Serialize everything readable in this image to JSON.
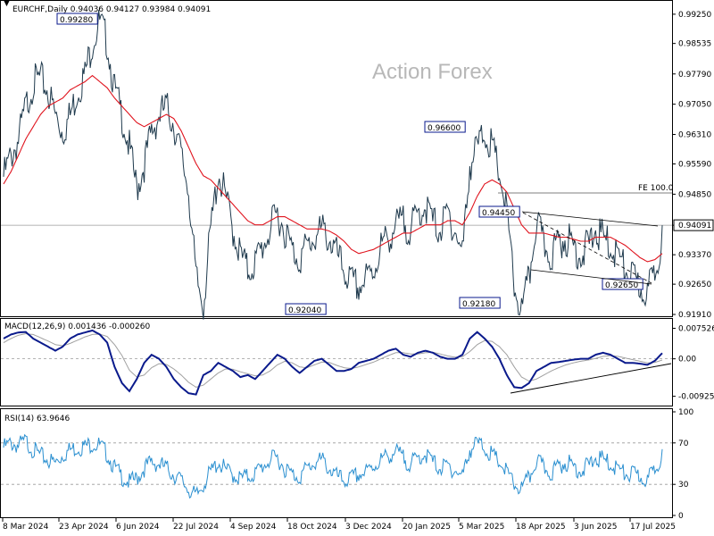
{
  "header": {
    "symbol_line": "EURCHF,Daily  0.94036 0.94127 0.93984 0.94091",
    "watermark": "Action Forex"
  },
  "colors": {
    "price": "#1f3a4d",
    "ma": "#e0141e",
    "macd": "#0a1a8c",
    "signal": "#a0a0a0",
    "rsi": "#2a8fd0",
    "label_border": "#0a1a8c",
    "trend": "#000000",
    "hline": "#9a9a9a"
  },
  "chart_data": [
    {
      "type": "line",
      "title": "EURCHF,Daily  0.94036 0.94127 0.93984 0.94091",
      "y_tick_labels": [
        "0.99250",
        "0.98535",
        "0.97790",
        "0.97050",
        "0.96310",
        "0.95590",
        "0.94850",
        "0.94091",
        "0.93370",
        "0.92650",
        "0.91910"
      ],
      "ylim": [
        0.9191,
        0.9951
      ],
      "current_price": "0.94091",
      "annotations": [
        "0.99280",
        "0.92040",
        "0.96600",
        "0.94450",
        "0.92180",
        "0.92650",
        "FE 100.0"
      ],
      "series": [
        {
          "values": [
            0.955,
            0.96,
            0.964,
            0.972,
            0.978,
            0.979,
            0.976,
            0.97,
            0.966,
            0.97,
            0.976,
            0.98,
            0.988,
            0.9928,
            0.988,
            0.976,
            0.97,
            0.962,
            0.952,
            0.958,
            0.966,
            0.97,
            0.972,
            0.968,
            0.96,
            0.952,
            0.93,
            0.924,
            0.942,
            0.956,
            0.95,
            0.942,
            0.936,
            0.932,
            0.934,
            0.938,
            0.942,
            0.946,
            0.942,
            0.937,
            0.935,
            0.938,
            0.94,
            0.942,
            0.94,
            0.936,
            0.932,
            0.929,
            0.928,
            0.93,
            0.932,
            0.938,
            0.94,
            0.943,
            0.944,
            0.942,
            0.946,
            0.948,
            0.944,
            0.942,
            0.946,
            0.942,
            0.936,
            0.958,
            0.962,
            0.966,
            0.962,
            0.956,
            0.946,
            0.928,
            0.9218,
            0.93,
            0.9445,
            0.938,
            0.936,
            0.939,
            0.94,
            0.938,
            0.936,
            0.938,
            0.942,
            0.94,
            0.938,
            0.936,
            0.932,
            0.93,
            0.928,
            0.9265,
            0.932,
            0.9409
          ]
        },
        {
          "name": "",
          "values": [
            0.951,
            0.954,
            0.958,
            0.962,
            0.965,
            0.968,
            0.97,
            0.971,
            0.972,
            0.974,
            0.975,
            0.976,
            0.9775,
            0.976,
            0.9745,
            0.972,
            0.97,
            0.968,
            0.966,
            0.965,
            0.966,
            0.967,
            0.968,
            0.967,
            0.964,
            0.96,
            0.956,
            0.953,
            0.952,
            0.95,
            0.948,
            0.946,
            0.944,
            0.942,
            0.941,
            0.941,
            0.942,
            0.943,
            0.943,
            0.942,
            0.941,
            0.94,
            0.94,
            0.94,
            0.9395,
            0.9385,
            0.937,
            0.935,
            0.934,
            0.9345,
            0.935,
            0.936,
            0.937,
            0.938,
            0.939,
            0.939,
            0.94,
            0.941,
            0.941,
            0.941,
            0.942,
            0.942,
            0.941,
            0.944,
            0.948,
            0.951,
            0.952,
            0.951,
            0.949,
            0.945,
            0.941,
            0.939,
            0.939,
            0.939,
            0.9385,
            0.938,
            0.938,
            0.9375,
            0.937,
            0.937,
            0.938,
            0.938,
            0.938,
            0.937,
            0.936,
            0.9345,
            0.933,
            0.932,
            0.9325,
            0.934
          ]
        }
      ]
    },
    {
      "type": "line",
      "title": "MACD(12,26,9) 0.001436 -0.000260",
      "y_tick_labels": [
        "0.007526",
        "0.00",
        "-0.009252"
      ],
      "ylim": [
        -0.0111,
        0.0094
      ],
      "series": [
        {
          "values": [
            0.005,
            0.006,
            0.0065,
            0.0066,
            0.005,
            0.004,
            0.003,
            0.002,
            0.003,
            0.005,
            0.006,
            0.0065,
            0.007,
            0.006,
            0.004,
            -0.002,
            -0.006,
            -0.008,
            -0.005,
            -0.001,
            0.001,
            0.0,
            -0.002,
            -0.005,
            -0.007,
            -0.0085,
            -0.0088,
            -0.004,
            -0.003,
            -0.001,
            -0.002,
            -0.003,
            -0.0045,
            -0.004,
            -0.005,
            -0.003,
            -0.001,
            0.001,
            0.0,
            -0.002,
            -0.0035,
            -0.002,
            -0.0005,
            0.0,
            -0.0015,
            -0.003,
            -0.003,
            -0.0025,
            -0.001,
            -0.0005,
            0.0,
            0.001,
            0.002,
            0.0025,
            0.001,
            0.0005,
            0.0015,
            0.002,
            0.0015,
            0.0005,
            0.0,
            0.0,
            0.001,
            0.005,
            0.0066,
            0.005,
            0.003,
            0.0,
            -0.004,
            -0.007,
            -0.0072,
            -0.006,
            -0.003,
            -0.002,
            -0.001,
            -0.0008,
            -0.0005,
            -0.0002,
            0.0,
            0.0,
            0.001,
            0.0015,
            0.001,
            0.0,
            -0.001,
            -0.001,
            -0.0012,
            -0.0015,
            -0.0005,
            0.0014
          ]
        },
        {
          "values": [
            0.004,
            0.005,
            0.0058,
            0.0062,
            0.006,
            0.0052,
            0.0044,
            0.0035,
            0.0032,
            0.0038,
            0.0046,
            0.0054,
            0.006,
            0.0061,
            0.0055,
            0.0035,
            0.0008,
            -0.0028,
            -0.0045,
            -0.004,
            -0.0022,
            -0.0012,
            -0.0014,
            -0.0025,
            -0.004,
            -0.0058,
            -0.007,
            -0.0065,
            -0.005,
            -0.0035,
            -0.0025,
            -0.0026,
            -0.0032,
            -0.0037,
            -0.0042,
            -0.004,
            -0.003,
            -0.0015,
            -0.0006,
            -0.001,
            -0.002,
            -0.0022,
            -0.0015,
            -0.0008,
            -0.0009,
            -0.0016,
            -0.0022,
            -0.0024,
            -0.002,
            -0.0014,
            -0.0008,
            0.0,
            0.0008,
            0.0015,
            0.0015,
            0.0012,
            0.0012,
            0.0015,
            0.0016,
            0.0012,
            0.0007,
            0.0004,
            0.0005,
            0.0018,
            0.0035,
            0.0045,
            0.0043,
            0.003,
            0.001,
            -0.002,
            -0.0045,
            -0.0055,
            -0.005,
            -0.004,
            -0.003,
            -0.0022,
            -0.0015,
            -0.001,
            -0.0006,
            -0.0003,
            0.0001,
            0.0006,
            0.0008,
            0.0006,
            0.0002,
            -0.0002,
            -0.0006,
            -0.001,
            -0.0009,
            -0.0003
          ]
        }
      ]
    },
    {
      "type": "line",
      "title": "RSI(14) 63.9646",
      "y_tick_labels": [
        "100",
        "70",
        "30",
        "0"
      ],
      "ylim": [
        0,
        100
      ],
      "series": [
        {
          "values": [
            70,
            74,
            72,
            76,
            68,
            62,
            58,
            55,
            63,
            68,
            70,
            71,
            74,
            72,
            64,
            50,
            42,
            36,
            40,
            50,
            56,
            54,
            50,
            44,
            38,
            30,
            22,
            35,
            46,
            56,
            48,
            44,
            40,
            42,
            45,
            52,
            58,
            60,
            50,
            44,
            42,
            50,
            55,
            58,
            50,
            42,
            38,
            40,
            44,
            46,
            52,
            58,
            62,
            66,
            60,
            54,
            60,
            64,
            56,
            50,
            52,
            48,
            42,
            68,
            74,
            70,
            62,
            56,
            46,
            34,
            30,
            40,
            58,
            50,
            46,
            52,
            56,
            52,
            48,
            52,
            60,
            58,
            54,
            50,
            44,
            44,
            42,
            38,
            50,
            64
          ]
        }
      ]
    }
  ],
  "x_axis": {
    "labels": [
      "8 Mar 2024",
      "23 Apr 2024",
      "6 Jun 2024",
      "22 Jul 2024",
      "4 Sep 2024",
      "18 Oct 2024",
      "3 Dec 2024",
      "20 Jan 2025",
      "5 Mar 2025",
      "18 Apr 2025",
      "3 Jun 2025",
      "17 Jul 2025"
    ]
  }
}
